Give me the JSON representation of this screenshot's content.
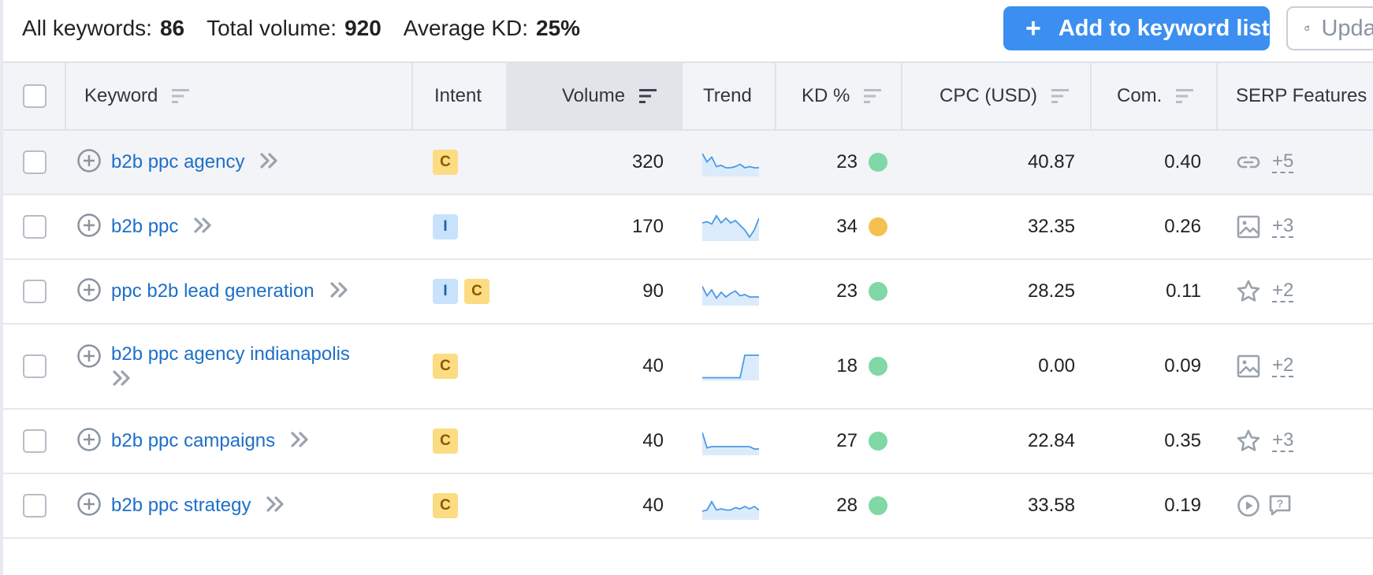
{
  "summary": {
    "all_keywords_label": "All keywords:",
    "all_keywords_value": "86",
    "total_volume_label": "Total volume:",
    "total_volume_value": "920",
    "avg_kd_label": "Average KD:",
    "avg_kd_value": "25%"
  },
  "toolbar": {
    "add_plus": "+",
    "add_label": "Add to keyword list",
    "update_label": "Update"
  },
  "columns": {
    "keyword": "Keyword",
    "intent": "Intent",
    "volume": "Volume",
    "trend": "Trend",
    "kd": "KD %",
    "cpc": "CPC (USD)",
    "com": "Com.",
    "serp": "SERP Features"
  },
  "colors": {
    "accent": "#3c8ff0",
    "link": "#1d6fc8",
    "kd_easy": "#7fd8a5",
    "kd_possible": "#f4c150"
  },
  "rows": [
    {
      "keyword": "b2b ppc agency",
      "intents": [
        "C"
      ],
      "volume": "320",
      "trend": [
        0.9,
        0.55,
        0.75,
        0.35,
        0.4,
        0.3,
        0.3,
        0.35,
        0.45,
        0.3,
        0.35,
        0.3,
        0.3
      ],
      "kd": "23",
      "kd_color": "#7fd8a5",
      "cpc": "40.87",
      "com": "0.40",
      "serp_icon": "link-icon",
      "serp_more": "+5"
    },
    {
      "keyword": "b2b ppc",
      "intents": [
        "I"
      ],
      "volume": "170",
      "trend": [
        0.7,
        0.75,
        0.65,
        1.0,
        0.7,
        0.9,
        0.7,
        0.8,
        0.6,
        0.4,
        0.1,
        0.4,
        0.9
      ],
      "kd": "34",
      "kd_color": "#f4c150",
      "cpc": "32.35",
      "com": "0.26",
      "serp_icon": "image-icon",
      "serp_more": "+3"
    },
    {
      "keyword": "ppc b2b lead generation",
      "intents": [
        "I",
        "C"
      ],
      "volume": "90",
      "trend": [
        0.75,
        0.35,
        0.6,
        0.25,
        0.5,
        0.3,
        0.45,
        0.55,
        0.35,
        0.4,
        0.3,
        0.3,
        0.3
      ],
      "kd": "23",
      "kd_color": "#7fd8a5",
      "cpc": "28.25",
      "com": "0.11",
      "serp_icon": "star-icon",
      "serp_more": "+2"
    },
    {
      "keyword": "b2b ppc agency indianapolis",
      "intents": [
        "C"
      ],
      "volume": "40",
      "trend": [
        0.05,
        0.05,
        0.05,
        0.05,
        0.05,
        0.05,
        0.05,
        0.05,
        0.05,
        1.0,
        1.0,
        1.0,
        1.0
      ],
      "kd": "18",
      "kd_color": "#7fd8a5",
      "cpc": "0.00",
      "com": "0.09",
      "serp_icon": "image-icon",
      "serp_more": "+2"
    },
    {
      "keyword": "b2b ppc campaigns",
      "intents": [
        "C"
      ],
      "volume": "40",
      "trend": [
        0.9,
        0.25,
        0.3,
        0.3,
        0.3,
        0.3,
        0.3,
        0.3,
        0.3,
        0.3,
        0.3,
        0.2,
        0.2
      ],
      "kd": "27",
      "kd_color": "#7fd8a5",
      "cpc": "22.84",
      "com": "0.35",
      "serp_icon": "star-icon",
      "serp_more": "+3"
    },
    {
      "keyword": "b2b ppc strategy",
      "intents": [
        "C"
      ],
      "volume": "40",
      "trend": [
        0.3,
        0.35,
        0.7,
        0.35,
        0.4,
        0.35,
        0.35,
        0.45,
        0.4,
        0.5,
        0.4,
        0.5,
        0.35
      ],
      "kd": "28",
      "kd_color": "#7fd8a5",
      "cpc": "33.58",
      "com": "0.19",
      "serp_icon": "video-icon",
      "serp_icon2": "faq-icon",
      "serp_more": ""
    }
  ]
}
